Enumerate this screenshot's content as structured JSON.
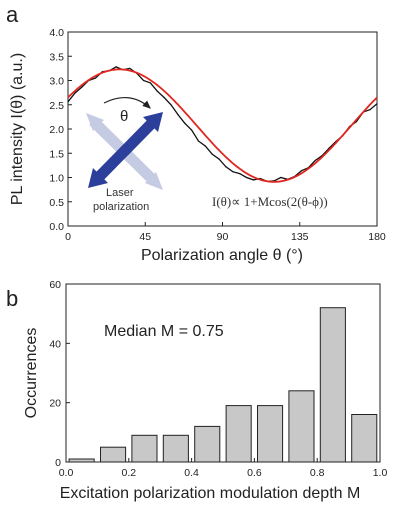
{
  "panels": {
    "a": "a",
    "b": "b"
  },
  "colors": {
    "data_trace": "#111111",
    "fit_curve": "#e0261f",
    "bar_fill": "#c8c8c8",
    "arrow_dark": "#2c3f9a",
    "arrow_light": "#c4cbe3"
  },
  "annotations": {
    "theta": "θ",
    "laser": "Laser",
    "polarization": "polarization",
    "formula": "I(θ)∝ 1+Mcos(2(θ-ϕ))",
    "median": "Median M = 0.75"
  },
  "chart_data": [
    {
      "type": "line",
      "xlabel": "Polarization angle θ (°)",
      "ylabel": "PL intensity I(θ)   (a.u.)",
      "xlim": [
        0,
        180
      ],
      "ylim": [
        0,
        4.0
      ],
      "x_ticks": [
        0,
        45,
        90,
        135,
        180
      ],
      "y_ticks": [
        0.0,
        0.5,
        1.0,
        1.5,
        2.0,
        2.5,
        3.0,
        3.5,
        4.0
      ],
      "series": [
        {
          "role": "data",
          "x": [
            0,
            4,
            8,
            12,
            16,
            20,
            24,
            28,
            32,
            36,
            40,
            44,
            48,
            52,
            56,
            60,
            64,
            68,
            72,
            76,
            80,
            84,
            88,
            92,
            96,
            100,
            104,
            108,
            112,
            116,
            120,
            124,
            128,
            132,
            136,
            140,
            144,
            148,
            152,
            156,
            160,
            164,
            168,
            172,
            176,
            180
          ],
          "y": [
            2.56,
            2.74,
            2.86,
            3.0,
            3.05,
            3.18,
            3.2,
            3.28,
            3.22,
            3.25,
            3.15,
            3.0,
            2.95,
            2.78,
            2.65,
            2.5,
            2.3,
            2.12,
            1.98,
            1.75,
            1.65,
            1.48,
            1.38,
            1.22,
            1.12,
            1.08,
            1.0,
            0.95,
            0.98,
            0.92,
            0.93,
            1.0,
            0.96,
            1.02,
            1.14,
            1.2,
            1.35,
            1.45,
            1.6,
            1.74,
            1.86,
            2.05,
            2.15,
            2.35,
            2.4,
            2.52
          ]
        },
        {
          "role": "fit",
          "model": "I = 2.07 + 1.16*cos(2(θ-30))",
          "offset": 2.07,
          "amplitude": 1.16,
          "phase_deg": 30
        }
      ],
      "grid": false
    },
    {
      "type": "bar",
      "xlabel": "Excitation polarization modulation depth M",
      "ylabel": "Occurrences",
      "xlim": [
        0.0,
        1.0
      ],
      "ylim": [
        0,
        60
      ],
      "x_ticks": [
        0.0,
        0.2,
        0.4,
        0.6,
        0.8,
        1.0
      ],
      "y_ticks": [
        0,
        20,
        40,
        60
      ],
      "bin_width": 0.1,
      "bin_starts": [
        0.0,
        0.1,
        0.2,
        0.3,
        0.4,
        0.5,
        0.6,
        0.7,
        0.8,
        0.9
      ],
      "values": [
        1,
        5,
        9,
        9,
        12,
        19,
        19,
        24,
        52,
        16
      ],
      "grid": false
    }
  ]
}
